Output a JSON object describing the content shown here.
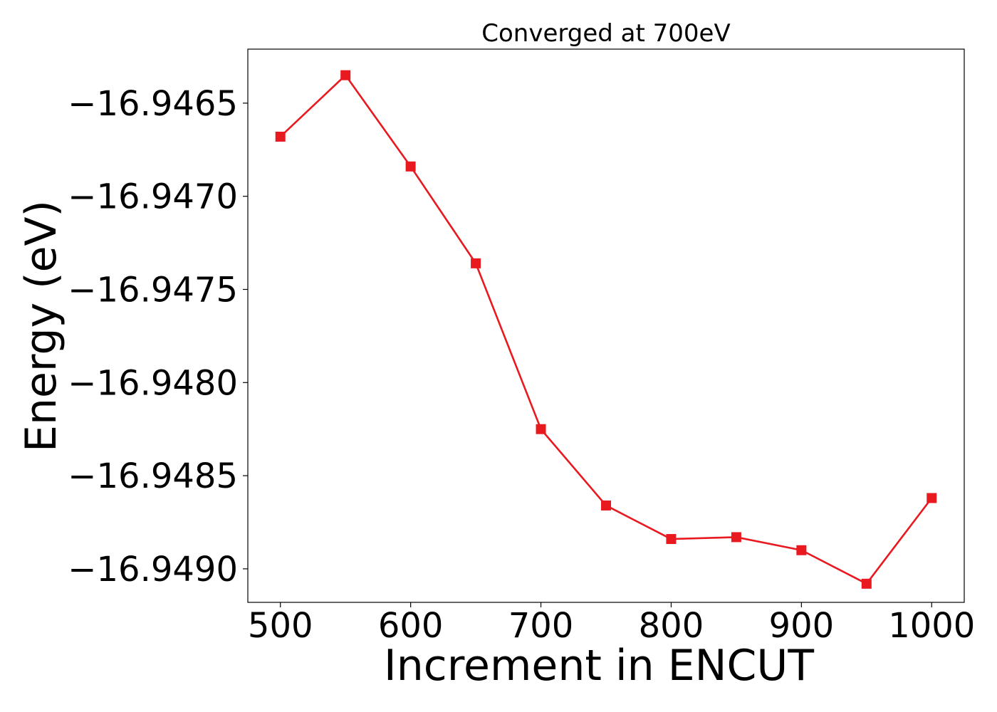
{
  "chart_data": {
    "type": "line",
    "title": "Converged at 700eV",
    "xlabel": "Increment in ENCUT",
    "ylabel": "Energy (eV)",
    "x": [
      500,
      550,
      600,
      650,
      700,
      750,
      800,
      850,
      900,
      950,
      1000
    ],
    "series": [
      {
        "values": [
          -16.94668,
          -16.94635,
          -16.94684,
          -16.94736,
          -16.94825,
          -16.94866,
          -16.94884,
          -16.94883,
          -16.9489,
          -16.94908,
          -16.94862
        ],
        "color": "#e8191f",
        "marker": "square"
      }
    ],
    "xticks": [
      500,
      600,
      700,
      800,
      900,
      1000
    ],
    "xtick_labels": [
      "500",
      "600",
      "700",
      "800",
      "900",
      "1000"
    ],
    "yticks": [
      -16.9465,
      -16.947,
      -16.9475,
      -16.948,
      -16.9485,
      -16.949
    ],
    "ytick_labels": [
      "−16.9465",
      "−16.9470",
      "−16.9475",
      "−16.9480",
      "−16.9485",
      "−16.9490"
    ],
    "xlim": [
      475,
      1025
    ],
    "ylim": [
      -16.94918,
      -16.94621
    ],
    "grid": false,
    "legend": false
  }
}
